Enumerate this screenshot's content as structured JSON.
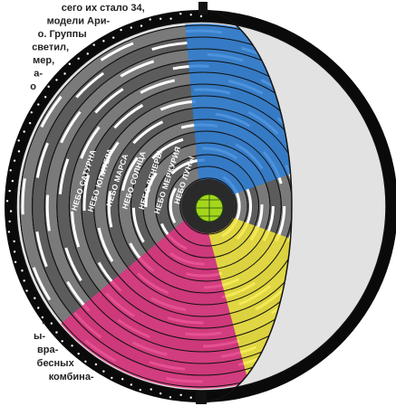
{
  "top_text": [
    "сего их стало 34,",
    "модели Ари-",
    "о. Группы",
    "светил,",
    "мер,",
    "а-",
    "о"
  ],
  "bottom_text": [
    "-",
    "ы-",
    "вра-",
    "бесных",
    "комбина-"
  ],
  "sphere_labels": [
    "НЕБО САТУРНА",
    "НЕБО ЮПИТЕРА",
    "НЕБО МАРСА",
    "НЕБО СОЛНЦА",
    "НЕБО ВЕНЕРЫ",
    "НЕБО МЕРКУРИЯ",
    "НЕБО ЛУНЫ"
  ]
}
